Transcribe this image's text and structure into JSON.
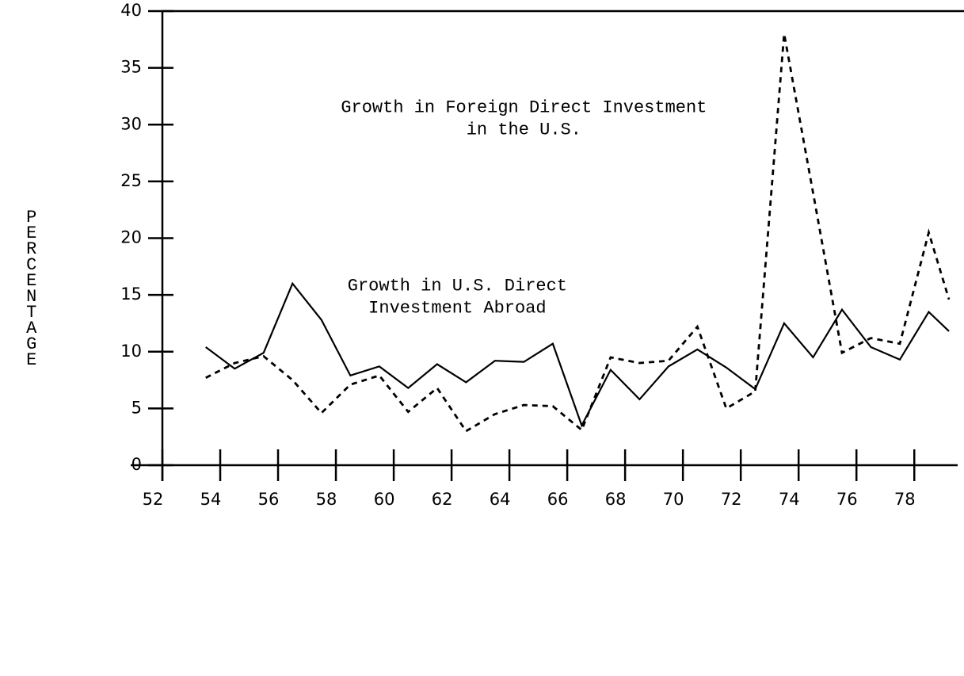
{
  "chart_data": {
    "type": "line",
    "ylabel": "PERCENTAGE",
    "annotations": [
      {
        "lines": [
          "Growth in Foreign Direct Investment",
          "in the U.S."
        ],
        "x": 64.5,
        "y": 31.5
      },
      {
        "lines": [
          "Growth in U.S. Direct",
          "Investment Abroad"
        ],
        "x": 62.2,
        "y": 15.8
      }
    ],
    "x": [
      53.5,
      54.5,
      55.5,
      56.5,
      57.5,
      58.5,
      59.5,
      60.5,
      61.5,
      62.5,
      63.5,
      64.5,
      65.5,
      66.5,
      67.5,
      68.5,
      69.5,
      70.5,
      71.5,
      72.5,
      73.5,
      74.5,
      75.5,
      76.5,
      77.5,
      78.5,
      79.2
    ],
    "series": [
      {
        "name": "Growth in U.S. Direct Investment Abroad",
        "color": "#000000",
        "dash": "solid",
        "values": [
          10.4,
          8.5,
          9.9,
          16.0,
          12.8,
          7.9,
          8.7,
          6.8,
          8.9,
          7.3,
          9.2,
          9.1,
          10.7,
          3.5,
          8.4,
          5.8,
          8.7,
          10.2,
          8.6,
          6.7,
          12.5,
          9.5,
          13.7,
          10.4,
          9.3,
          13.5,
          11.8
        ]
      },
      {
        "name": "Growth in Foreign Direct Investment in the U.S.",
        "color": "#000000",
        "dash": "dashed",
        "values": [
          7.7,
          9.0,
          9.6,
          7.5,
          4.6,
          7.1,
          7.9,
          4.7,
          6.8,
          3.0,
          4.5,
          5.3,
          5.2,
          3.1,
          9.5,
          9.0,
          9.2,
          12.2,
          5.0,
          6.5,
          38.0,
          24.0,
          9.9,
          11.2,
          10.7,
          20.5,
          14.6
        ]
      }
    ],
    "xlim": [
      52,
      79.5
    ],
    "xticks": [
      52,
      54,
      56,
      58,
      60,
      62,
      64,
      66,
      68,
      70,
      72,
      74,
      76,
      78
    ],
    "ylim": [
      0,
      40
    ],
    "yticks": [
      0,
      5,
      10,
      15,
      20,
      25,
      30,
      35,
      40
    ]
  }
}
